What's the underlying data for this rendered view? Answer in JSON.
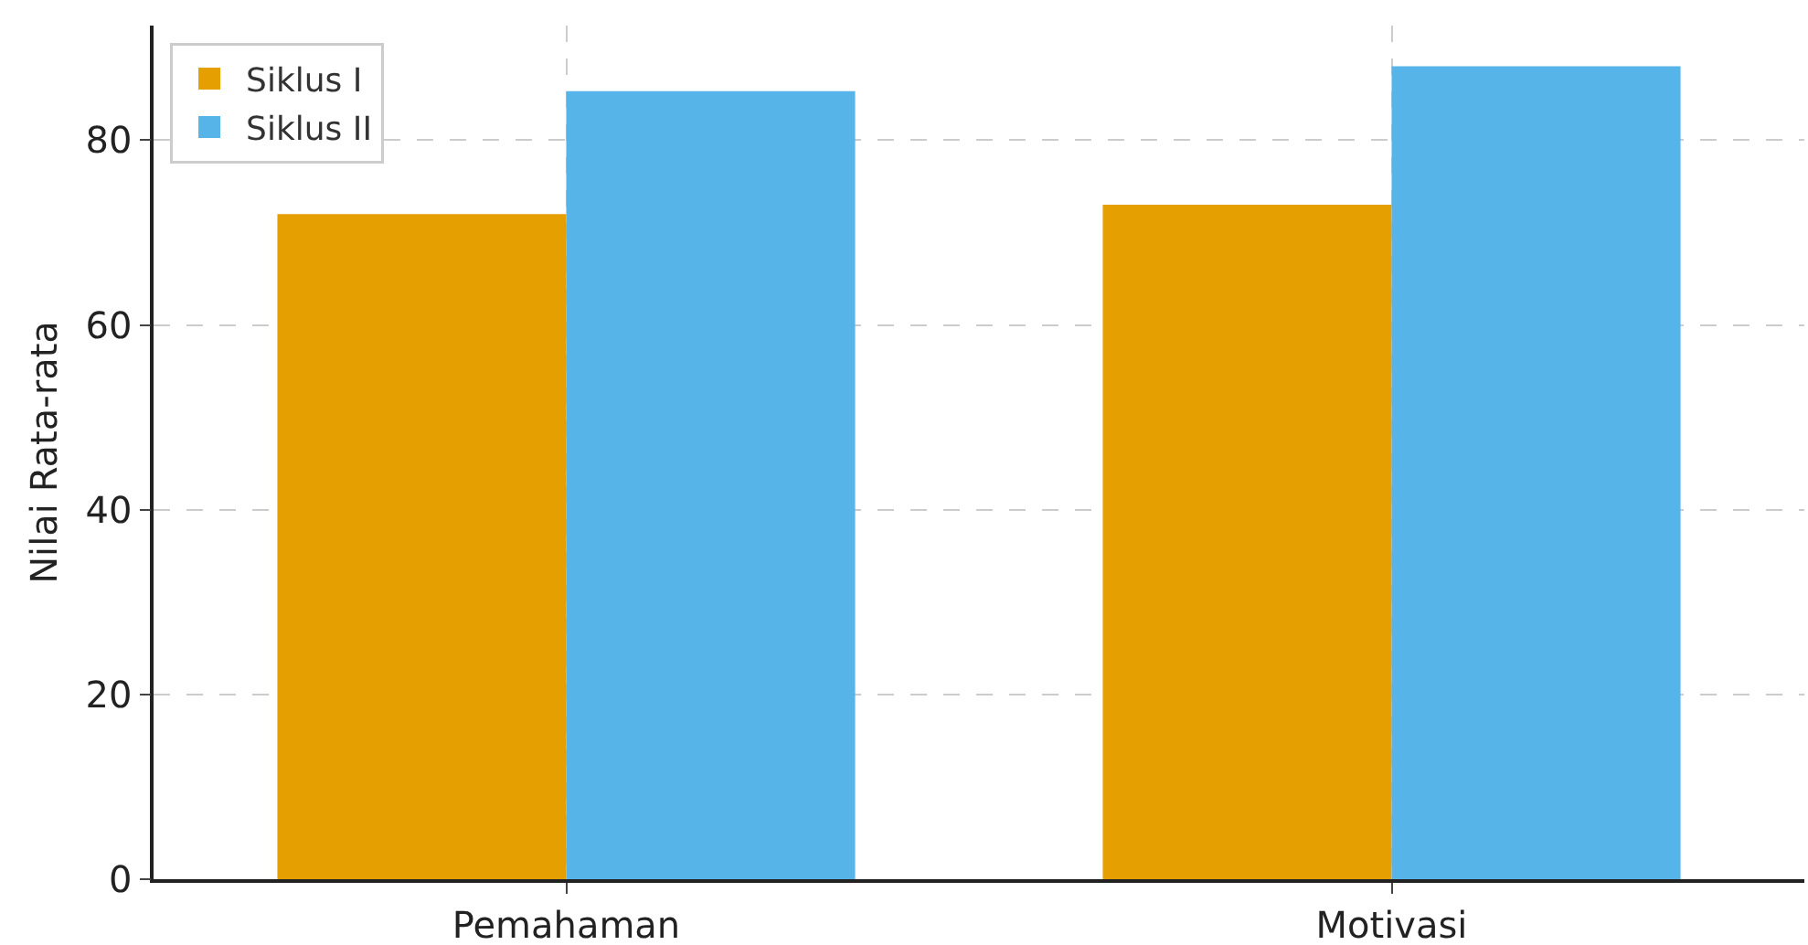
{
  "chart_data": {
    "type": "bar",
    "ylabel": "Nilai Rata-rata",
    "categories": [
      "Pemahaman",
      "Motivasi"
    ],
    "series": [
      {
        "name": "Siklus I",
        "color": "#e69f00",
        "values": [
          72,
          73
        ]
      },
      {
        "name": "Siklus II",
        "color": "#56b4e9",
        "values": [
          85.3,
          88
        ]
      }
    ],
    "ylim": [
      0,
      92.4
    ],
    "yticks": [
      0,
      20,
      40,
      60,
      80
    ],
    "grid": true,
    "legend": "top left"
  }
}
